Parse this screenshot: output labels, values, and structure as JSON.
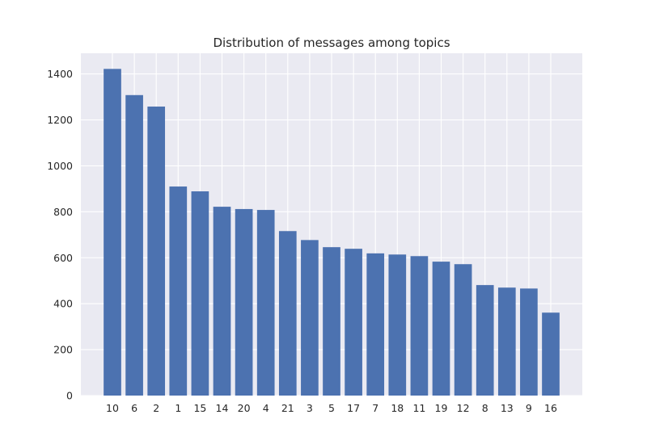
{
  "chart_data": {
    "type": "bar",
    "title": "Distribution of messages among topics",
    "xlabel": "",
    "ylabel": "",
    "categories": [
      "10",
      "6",
      "2",
      "1",
      "15",
      "14",
      "20",
      "4",
      "21",
      "3",
      "5",
      "17",
      "7",
      "18",
      "11",
      "19",
      "12",
      "8",
      "13",
      "9",
      "16"
    ],
    "values": [
      1422,
      1308,
      1258,
      910,
      889,
      822,
      812,
      808,
      716,
      677,
      646,
      639,
      619,
      614,
      607,
      583,
      572,
      481,
      470,
      466,
      361
    ],
    "ylim": [
      0,
      1490
    ],
    "yticks": [
      0,
      200,
      400,
      600,
      800,
      1000,
      1200,
      1400
    ],
    "grid": true,
    "legend": "none",
    "colors": {
      "bar": "#4c72b0",
      "plot_background": "#eaeaf2",
      "grid": "#ffffff",
      "text": "#262626"
    }
  }
}
